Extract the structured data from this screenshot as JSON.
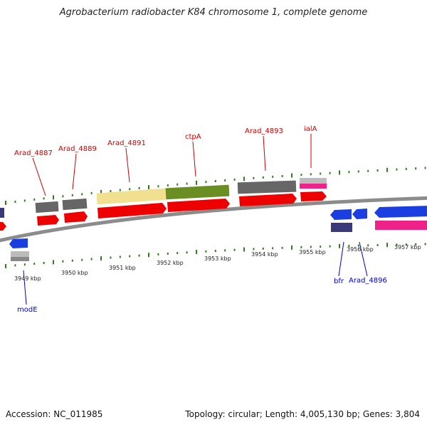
{
  "title": "Agrobacterium radiobacter K84 chromosome 1, complete genome",
  "footer": {
    "accession": "Accession: NC_011985",
    "stats": "Topology: circular; Length: 4,005,130 bp; Genes: 3,804"
  },
  "colors": {
    "backbone": "#8c8c8c",
    "tick": "#2e7d1e",
    "label_top": "#cc0000",
    "label_bottom": "#0000cc",
    "cds_red": "#ee0000",
    "gene_gray": "#666666",
    "gene_yellow": "#f0e090",
    "gene_olive": "#6b8e23",
    "gene_pink": "#ee2288",
    "gene_blue": "#1a3ee0",
    "gene_navy": "#3a3a7a",
    "gene_lightgray": "#bbbbbb"
  },
  "scale": {
    "labels": [
      {
        "name": "tick-3949",
        "text": "3949 kbp"
      },
      {
        "name": "tick-3950",
        "text": "3950 kbp"
      },
      {
        "name": "tick-3951",
        "text": "3951 kbp"
      },
      {
        "name": "tick-3952",
        "text": "3952 kbp"
      },
      {
        "name": "tick-3953",
        "text": "3953 kbp"
      },
      {
        "name": "tick-3954",
        "text": "3954 kbp"
      },
      {
        "name": "tick-3955",
        "text": "3955 kbp"
      },
      {
        "name": "tick-3956",
        "text": "3956 kbp"
      },
      {
        "name": "tick-3957",
        "text": "3957 kbp"
      }
    ]
  },
  "gene_labels": [
    {
      "name": "gene-label-arad-4887",
      "text": "Arad_4887",
      "strand": "top"
    },
    {
      "name": "gene-label-arad-4889",
      "text": "Arad_4889",
      "strand": "top"
    },
    {
      "name": "gene-label-arad-4891",
      "text": "Arad_4891",
      "strand": "top"
    },
    {
      "name": "gene-label-ctpa",
      "text": "ctpA",
      "strand": "top"
    },
    {
      "name": "gene-label-arad-4893",
      "text": "Arad_4893",
      "strand": "top"
    },
    {
      "name": "gene-label-iala",
      "text": "ialA",
      "strand": "top"
    },
    {
      "name": "gene-label-mode",
      "text": "modE",
      "strand": "bottom"
    },
    {
      "name": "gene-label-bfr",
      "text": "bfr",
      "strand": "bottom"
    },
    {
      "name": "gene-label-arad-4896",
      "text": "Arad_4896",
      "strand": "bottom"
    }
  ]
}
